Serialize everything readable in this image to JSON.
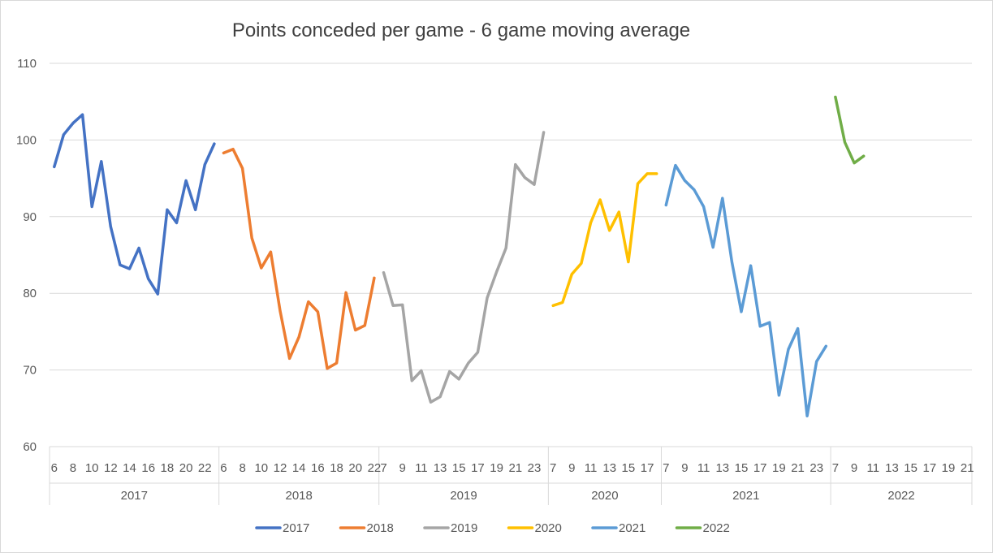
{
  "chart_data": {
    "type": "line",
    "title": "Points conceded  per game - 6 game moving average",
    "xlabel": "",
    "ylabel": "",
    "ylim": [
      60,
      110
    ],
    "yticks": [
      60,
      70,
      80,
      90,
      100,
      110
    ],
    "grid": true,
    "legend_position": "bottom",
    "x_slots": 98,
    "series": [
      {
        "name": "2017",
        "color": "#4472C4",
        "start": 0,
        "values": [
          96.5,
          100.7,
          102.2,
          103.3,
          91.3,
          97.2,
          88.7,
          83.7,
          83.2,
          85.9,
          81.9,
          79.9,
          90.9,
          89.2,
          94.7,
          90.9,
          96.8,
          99.5
        ]
      },
      {
        "name": "2018",
        "color": "#ED7D31",
        "start": 18,
        "values": [
          98.3,
          98.8,
          96.3,
          87.2,
          83.3,
          85.4,
          77.7,
          71.5,
          74.3,
          78.9,
          77.6,
          70.2,
          70.9,
          80.1,
          75.2,
          75.8,
          82.0
        ]
      },
      {
        "name": "2019",
        "color": "#A5A5A5",
        "start": 35,
        "values": [
          82.7,
          78.4,
          78.5,
          68.6,
          69.9,
          65.8,
          66.5,
          69.8,
          68.8,
          70.9,
          72.3,
          79.4,
          82.8,
          85.9,
          96.8,
          95.1,
          94.2,
          101.0
        ]
      },
      {
        "name": "2020",
        "color": "#FFC000",
        "start": 53,
        "values": [
          78.4,
          78.8,
          82.5,
          83.9,
          89.2,
          92.2,
          88.2,
          90.6,
          84.1,
          94.3,
          95.6,
          95.6
        ]
      },
      {
        "name": "2021",
        "color": "#5B9BD5",
        "start": 65,
        "values": [
          91.5,
          96.7,
          94.7,
          93.5,
          91.3,
          86.0,
          92.4,
          84.1,
          77.6,
          83.6,
          75.7,
          76.2,
          66.7,
          72.7,
          75.4,
          64.0,
          71.1,
          73.1
        ]
      },
      {
        "name": "2022",
        "color": "#70AD47",
        "start": 83,
        "values": [
          105.6,
          99.7,
          97.0,
          97.9
        ]
      }
    ],
    "x_groups": [
      {
        "year": "2017",
        "slots": 18,
        "labels": [
          "6",
          "8",
          "10",
          "12",
          "14",
          "16",
          "18",
          "20",
          "22"
        ]
      },
      {
        "year": "2018",
        "slots": 17,
        "labels": [
          "6",
          "8",
          "10",
          "12",
          "14",
          "16",
          "18",
          "20",
          "22"
        ]
      },
      {
        "year": "2019",
        "slots": 18,
        "labels": [
          "7",
          "9",
          "11",
          "13",
          "15",
          "17",
          "19",
          "21",
          "23"
        ]
      },
      {
        "year": "2020",
        "slots": 12,
        "labels": [
          "7",
          "9",
          "11",
          "13",
          "15",
          "17"
        ]
      },
      {
        "year": "2021",
        "slots": 18,
        "labels": [
          "7",
          "9",
          "11",
          "13",
          "15",
          "17",
          "19",
          "21",
          "23"
        ]
      },
      {
        "year": "2022",
        "slots": 15,
        "labels": [
          "7",
          "9",
          "11",
          "13",
          "15",
          "17",
          "19",
          "21"
        ]
      }
    ]
  }
}
